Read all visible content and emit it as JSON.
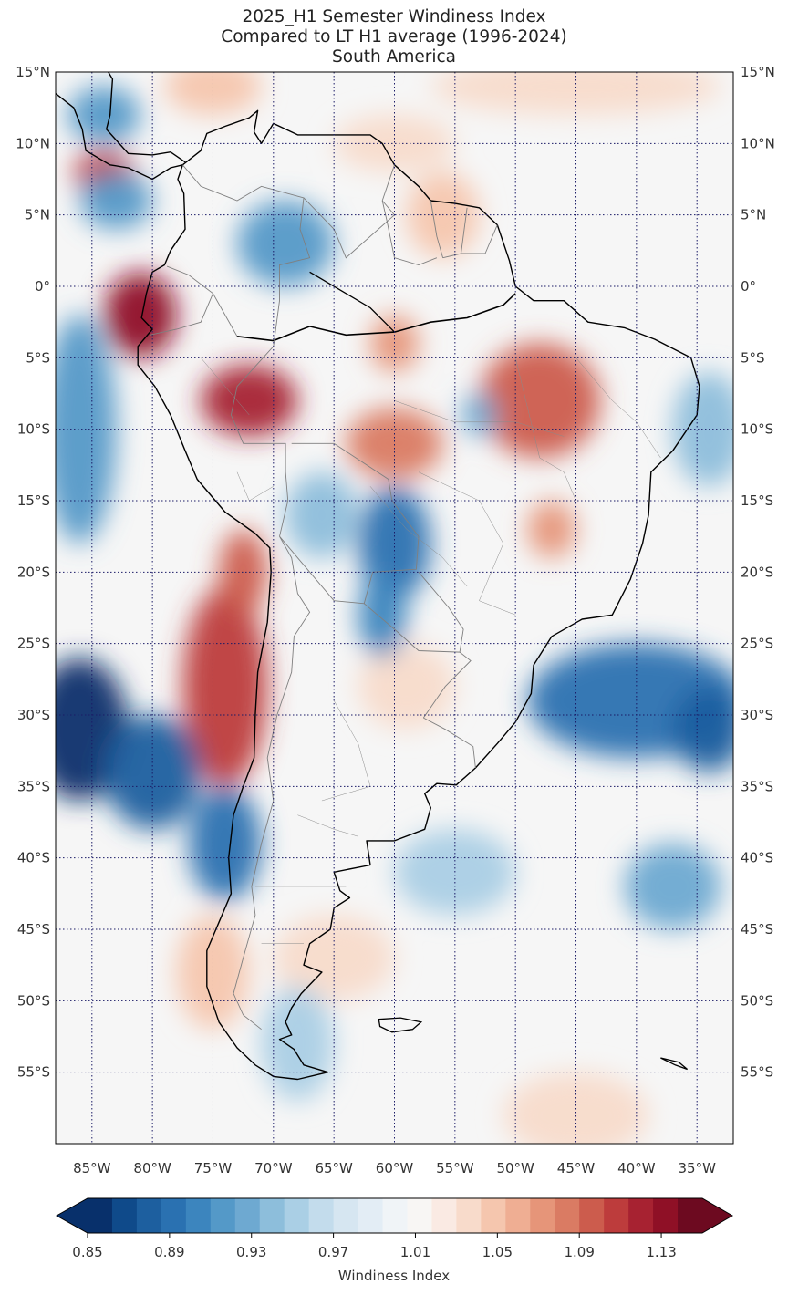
{
  "title": {
    "line1": "2025_H1 Semester Windiness Index",
    "line2": "Compared to LT H1 average (1996-2024)",
    "line3": "South America"
  },
  "map": {
    "lon_range": [
      -88,
      -32
    ],
    "lat_range": [
      -60,
      15
    ],
    "lat_ticks": [
      {
        "value": 15,
        "label": "15°N"
      },
      {
        "value": 10,
        "label": "10°N"
      },
      {
        "value": 5,
        "label": "5°N"
      },
      {
        "value": 0,
        "label": "0°"
      },
      {
        "value": -5,
        "label": "5°S"
      },
      {
        "value": -10,
        "label": "10°S"
      },
      {
        "value": -15,
        "label": "15°S"
      },
      {
        "value": -20,
        "label": "20°S"
      },
      {
        "value": -25,
        "label": "25°S"
      },
      {
        "value": -30,
        "label": "30°S"
      },
      {
        "value": -35,
        "label": "35°S"
      },
      {
        "value": -40,
        "label": "40°S"
      },
      {
        "value": -45,
        "label": "45°S"
      },
      {
        "value": -50,
        "label": "50°S"
      },
      {
        "value": -55,
        "label": "55°S"
      }
    ],
    "lon_ticks": [
      {
        "value": -85,
        "label": "85°W"
      },
      {
        "value": -80,
        "label": "80°W"
      },
      {
        "value": -75,
        "label": "75°W"
      },
      {
        "value": -70,
        "label": "70°W"
      },
      {
        "value": -65,
        "label": "65°W"
      },
      {
        "value": -60,
        "label": "60°W"
      },
      {
        "value": -55,
        "label": "55°W"
      },
      {
        "value": -50,
        "label": "50°W"
      },
      {
        "value": -45,
        "label": "45°W"
      },
      {
        "value": -40,
        "label": "40°W"
      },
      {
        "value": -35,
        "label": "35°W"
      }
    ],
    "grid": "dotted navy",
    "anomalies": [
      {
        "lon": -74,
        "lat": -28,
        "value": 1.11,
        "rlon": 3.5,
        "rlat": 7
      },
      {
        "lon": -72.5,
        "lat": -20,
        "value": 1.09,
        "rlon": 2,
        "rlat": 3
      },
      {
        "lon": -81,
        "lat": -2,
        "value": 1.13,
        "rlon": 3,
        "rlat": 3
      },
      {
        "lon": -84,
        "lat": 8,
        "value": 1.11,
        "rlon": 2.5,
        "rlat": 1.5
      },
      {
        "lon": -72,
        "lat": -8,
        "value": 1.12,
        "rlon": 4,
        "rlat": 2.5
      },
      {
        "lon": -60,
        "lat": -11,
        "value": 1.08,
        "rlon": 4,
        "rlat": 2.5
      },
      {
        "lon": -48,
        "lat": -8,
        "value": 1.09,
        "rlon": 5,
        "rlat": 4
      },
      {
        "lon": -47,
        "lat": -17,
        "value": 1.07,
        "rlon": 2,
        "rlat": 2
      },
      {
        "lon": -56,
        "lat": 5,
        "value": 1.05,
        "rlon": 3,
        "rlat": 3
      },
      {
        "lon": -60,
        "lat": -4,
        "value": 1.07,
        "rlon": 2,
        "rlat": 2
      },
      {
        "lon": -60,
        "lat": 10,
        "value": 1.04,
        "rlon": 5,
        "rlat": 2
      },
      {
        "lon": -45,
        "lat": 14,
        "value": 1.04,
        "rlon": 12,
        "rlat": 2
      },
      {
        "lon": -75,
        "lat": 14,
        "value": 1.05,
        "rlon": 4,
        "rlat": 2
      },
      {
        "lon": -75,
        "lat": -48,
        "value": 1.05,
        "rlon": 3,
        "rlat": 4
      },
      {
        "lon": -65,
        "lat": -47,
        "value": 1.03,
        "rlon": 5,
        "rlat": 3
      },
      {
        "lon": -45,
        "lat": -58,
        "value": 1.04,
        "rlon": 6,
        "rlat": 3
      },
      {
        "lon": -59,
        "lat": -28,
        "value": 1.03,
        "rlon": 4,
        "rlat": 3
      },
      {
        "lon": -86,
        "lat": -31,
        "value": 0.86,
        "rlon": 4,
        "rlat": 5
      },
      {
        "lon": -80,
        "lat": -34,
        "value": 0.88,
        "rlon": 4,
        "rlat": 4
      },
      {
        "lon": -74,
        "lat": -39,
        "value": 0.89,
        "rlon": 3,
        "rlat": 4
      },
      {
        "lon": -40,
        "lat": -29,
        "value": 0.89,
        "rlon": 9,
        "rlat": 4
      },
      {
        "lon": -34,
        "lat": -31,
        "value": 0.88,
        "rlon": 3,
        "rlat": 3
      },
      {
        "lon": -60,
        "lat": -18,
        "value": 0.89,
        "rlon": 3,
        "rlat": 4
      },
      {
        "lon": -61,
        "lat": -23,
        "value": 0.9,
        "rlon": 2,
        "rlat": 3
      },
      {
        "lon": -69,
        "lat": 3,
        "value": 0.92,
        "rlon": 4,
        "rlat": 3
      },
      {
        "lon": -83,
        "lat": 6,
        "value": 0.92,
        "rlon": 3,
        "rlat": 2
      },
      {
        "lon": -86,
        "lat": -10,
        "value": 0.92,
        "rlon": 3,
        "rlat": 8
      },
      {
        "lon": -66,
        "lat": -16,
        "value": 0.94,
        "rlon": 3,
        "rlat": 3
      },
      {
        "lon": -37,
        "lat": -42,
        "value": 0.93,
        "rlon": 4,
        "rlat": 3
      },
      {
        "lon": -55,
        "lat": -41,
        "value": 0.95,
        "rlon": 5,
        "rlat": 3
      },
      {
        "lon": -34,
        "lat": -10,
        "value": 0.94,
        "rlon": 3,
        "rlat": 4
      },
      {
        "lon": -84,
        "lat": 12,
        "value": 0.92,
        "rlon": 3,
        "rlat": 2
      },
      {
        "lon": -53,
        "lat": -9,
        "value": 0.93,
        "rlon": 1.5,
        "rlat": 1.5
      },
      {
        "lon": -68,
        "lat": -53,
        "value": 0.95,
        "rlon": 3,
        "rlat": 4
      }
    ]
  },
  "colorbar": {
    "label": "Windiness Index",
    "min": 0.85,
    "max": 1.15,
    "ticks": [
      "0.85",
      "0.89",
      "0.93",
      "0.97",
      "1.01",
      "1.05",
      "1.09",
      "1.13"
    ],
    "colors": [
      "#08306b",
      "#0f4a8a",
      "#1d5f9f",
      "#2a71b1",
      "#3c85be",
      "#5499c8",
      "#6ea9d1",
      "#8dbedb",
      "#aacfe5",
      "#c3dcec",
      "#d6e6f1",
      "#e3edf5",
      "#f0f4f7",
      "#f8f6f4",
      "#faeae3",
      "#f8dbcb",
      "#f5c6ae",
      "#efae93",
      "#e69579",
      "#da7b63",
      "#cc5c4d",
      "#bd3c3c",
      "#a72231",
      "#8f1026",
      "#6d0a20"
    ]
  },
  "colors": {
    "neutral": "#f6f6f6",
    "grid": "#1a1a66",
    "coast": "#000000",
    "border": "#7f7f7f"
  }
}
